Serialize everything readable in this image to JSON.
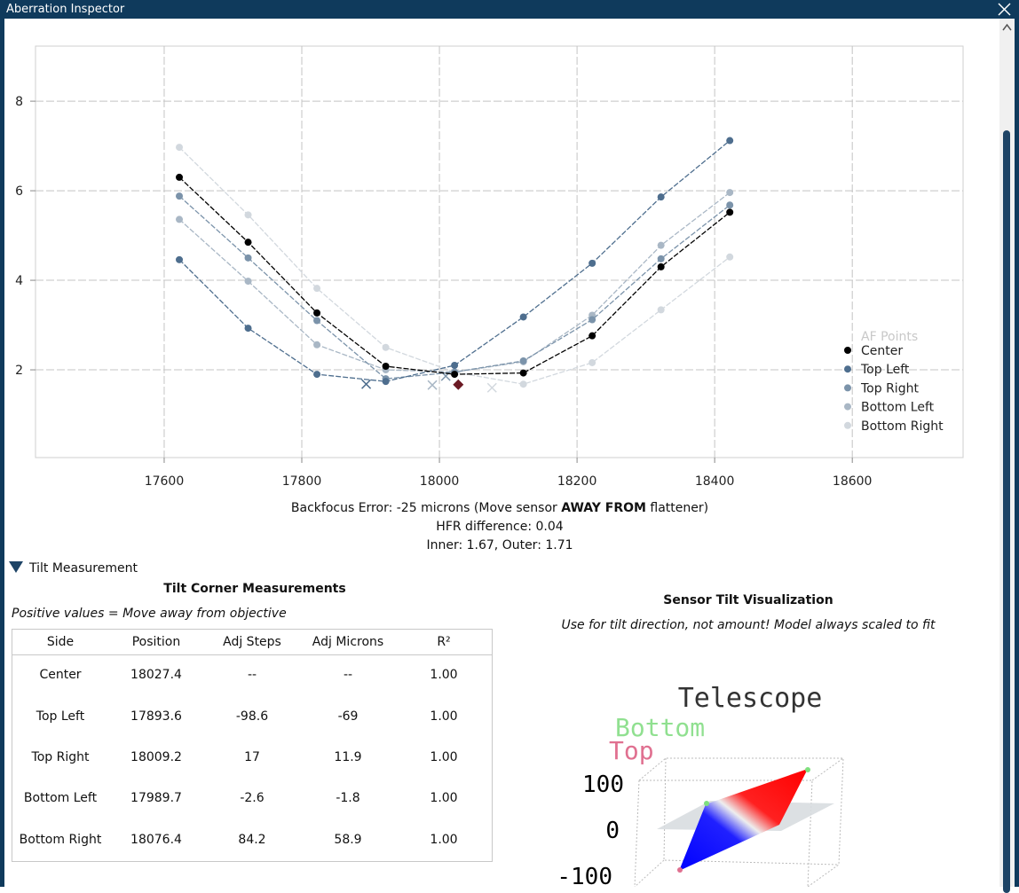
{
  "window": {
    "title": "Aberration Inspector"
  },
  "chart_data": {
    "type": "line",
    "xlim": [
      17413,
      18761
    ],
    "ylim": [
      0.04,
      9.23
    ],
    "xticks": [
      17600,
      17800,
      18000,
      18200,
      18400,
      18600
    ],
    "yticks": [
      2,
      4,
      6,
      8
    ],
    "grid": true,
    "legend_title": "AF Points",
    "legend_position": "lower right",
    "x": [
      17622,
      17722,
      17822,
      17922,
      18022,
      18122,
      18222,
      18322,
      18422
    ],
    "series": [
      {
        "name": "Center",
        "color": "#000000",
        "values": [
          6.3,
          4.85,
          3.27,
          2.08,
          1.9,
          1.93,
          2.76,
          4.3,
          5.52
        ],
        "minimum": [
          18027.4,
          1.67
        ],
        "minimum_marker": "diamond",
        "minimum_color": "#6b1a24"
      },
      {
        "name": "Top Left",
        "color": "#4e6e8e",
        "values": [
          4.46,
          2.93,
          1.9,
          1.74,
          2.1,
          3.18,
          4.38,
          5.86,
          7.12
        ],
        "minimum": [
          17893.6,
          1.68
        ]
      },
      {
        "name": "Top Right",
        "color": "#7b93aa",
        "values": [
          5.88,
          4.5,
          3.1,
          1.8,
          1.95,
          2.2,
          3.12,
          4.48,
          5.68
        ],
        "minimum": [
          18009.2,
          1.86
        ]
      },
      {
        "name": "Bottom Left",
        "color": "#a9b7c5",
        "values": [
          5.36,
          3.98,
          2.56,
          2.0,
          1.95,
          2.18,
          3.22,
          4.78,
          5.96
        ],
        "minimum": [
          17989.7,
          1.66
        ]
      },
      {
        "name": "Bottom Right",
        "color": "#d2d8de",
        "values": [
          6.97,
          5.46,
          3.82,
          2.5,
          1.95,
          1.68,
          2.16,
          3.34,
          4.52
        ],
        "minimum": [
          18076.4,
          1.6
        ]
      }
    ]
  },
  "summary": {
    "backfocus": {
      "prefix": "Backfocus Error: -25 microns (Move sensor ",
      "emphasis": "AWAY FROM",
      "suffix": " flattener)"
    },
    "hfr_difference": "HFR difference: 0.04",
    "inner_outer": "Inner: 1.67, Outer: 1.71"
  },
  "tilt": {
    "section": "Tilt Measurement",
    "table_title": "Tilt Corner Measurements",
    "note": "Positive values = Move away from objective",
    "table": {
      "headers": [
        "Side",
        "Position",
        "Adj Steps",
        "Adj Microns",
        "R²"
      ],
      "rows": [
        [
          "Center",
          "18027.4",
          "--",
          "--",
          "1.00"
        ],
        [
          "Top Left",
          "17893.6",
          "-98.6",
          "-69",
          "1.00"
        ],
        [
          "Top Right",
          "18009.2",
          "17",
          "11.9",
          "1.00"
        ],
        [
          "Bottom Left",
          "17989.7",
          "-2.6",
          "-1.8",
          "1.00"
        ],
        [
          "Bottom Right",
          "18076.4",
          "84.2",
          "58.9",
          "1.00"
        ]
      ]
    },
    "visualization": {
      "title": "Sensor Tilt Visualization",
      "subtitle": "Use for tilt direction, not amount! Model always scaled to fit",
      "telescope": "Telescope",
      "bottom": "Bottom",
      "top": "Top",
      "axis_ticks": [
        "100",
        "0",
        "-100"
      ]
    }
  }
}
